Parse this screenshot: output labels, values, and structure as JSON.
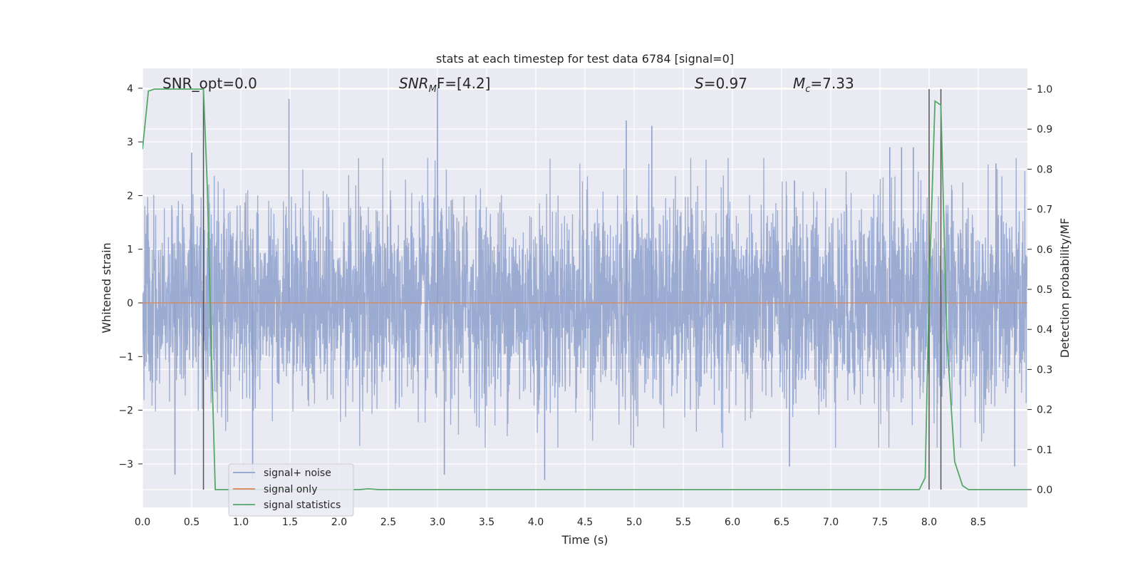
{
  "chart_data": {
    "type": "line",
    "title": "stats at each timestep for test data 6784 [signal=0]",
    "xlabel": "Time (s)",
    "ylabel": "Whitened strain",
    "ylabel_right": "Detection probability/MF",
    "xlim": [
      0.0,
      9.0
    ],
    "ylim": [
      -3.85,
      4.35
    ],
    "ylim_right": [
      -0.05,
      1.04
    ],
    "x_ticks": [
      "0.0",
      "0.5",
      "1.0",
      "1.5",
      "2.0",
      "2.5",
      "3.0",
      "3.5",
      "4.0",
      "4.5",
      "5.0",
      "5.5",
      "6.0",
      "6.5",
      "7.0",
      "7.5",
      "8.0",
      "8.5"
    ],
    "y_ticks": [
      "4",
      "3",
      "2",
      "1",
      "0",
      "−1",
      "−2",
      "−3"
    ],
    "y_ticks_right": [
      "1.0",
      "0.9",
      "0.8",
      "0.7",
      "0.6",
      "0.5",
      "0.4",
      "0.3",
      "0.2",
      "0.1",
      "0.0"
    ],
    "grid": true,
    "legend_position": "lower-left",
    "annotations": {
      "snr_opt": "SNR_opt=0.0",
      "snr_mf_name": "SNR",
      "snr_mf_sub": "M",
      "snr_mf_tail": "F=[4.2]",
      "s_name": "S",
      "s_value": "=0.97",
      "mc_name": "M",
      "mc_sub": "c",
      "mc_value": "=7.33"
    },
    "vlines_x": [
      0.62,
      8.0,
      8.12
    ],
    "series": [
      {
        "name": "signal+ noise",
        "color": "#8da0cb",
        "axis": "left",
        "description_values": "whitened noise, approx. gaussian, peaks up to ~4 and down to ~-3.3",
        "peaks": [
          [
            0.5,
            2.8
          ],
          [
            1.49,
            3.8
          ],
          [
            3.0,
            4.0
          ],
          [
            4.92,
            3.4
          ],
          [
            5.18,
            3.3
          ],
          [
            7.6,
            2.9
          ],
          [
            7.72,
            2.9
          ],
          [
            7.84,
            2.9
          ],
          [
            8.68,
            2.6
          ],
          [
            0.33,
            -3.2
          ],
          [
            1.12,
            -3.3
          ],
          [
            3.07,
            -3.2
          ],
          [
            4.09,
            -3.3
          ],
          [
            6.58,
            -3.05
          ],
          [
            8.87,
            -3.05
          ]
        ]
      },
      {
        "name": "signal only",
        "color": "#dd8452",
        "axis": "left",
        "x": [
          0.0,
          9.0
        ],
        "y": [
          0.0,
          0.0
        ]
      },
      {
        "name": "signal statistics",
        "color": "#55a868",
        "axis": "right",
        "x": [
          0.0,
          0.06,
          0.12,
          0.18,
          0.3,
          0.45,
          0.55,
          0.62,
          0.66,
          0.7,
          0.74,
          0.8,
          1.0,
          1.5,
          2.0,
          2.2,
          2.3,
          2.4,
          3.0,
          4.0,
          5.0,
          6.0,
          7.0,
          7.5,
          7.9,
          7.96,
          8.0,
          8.06,
          8.12,
          8.18,
          8.26,
          8.34,
          8.4,
          8.6,
          8.8,
          9.0
        ],
        "y": [
          0.85,
          0.995,
          1.0,
          1.0,
          1.0,
          1.0,
          1.0,
          1.0,
          0.75,
          0.35,
          0.0,
          0.0,
          0.0,
          0.0,
          0.0,
          0.0,
          0.002,
          0.0,
          0.0,
          0.0,
          0.0,
          0.0,
          0.0,
          0.0,
          0.0,
          0.03,
          0.5,
          0.97,
          0.96,
          0.38,
          0.07,
          0.01,
          0.0,
          0.0,
          0.0,
          0.0
        ]
      }
    ]
  }
}
